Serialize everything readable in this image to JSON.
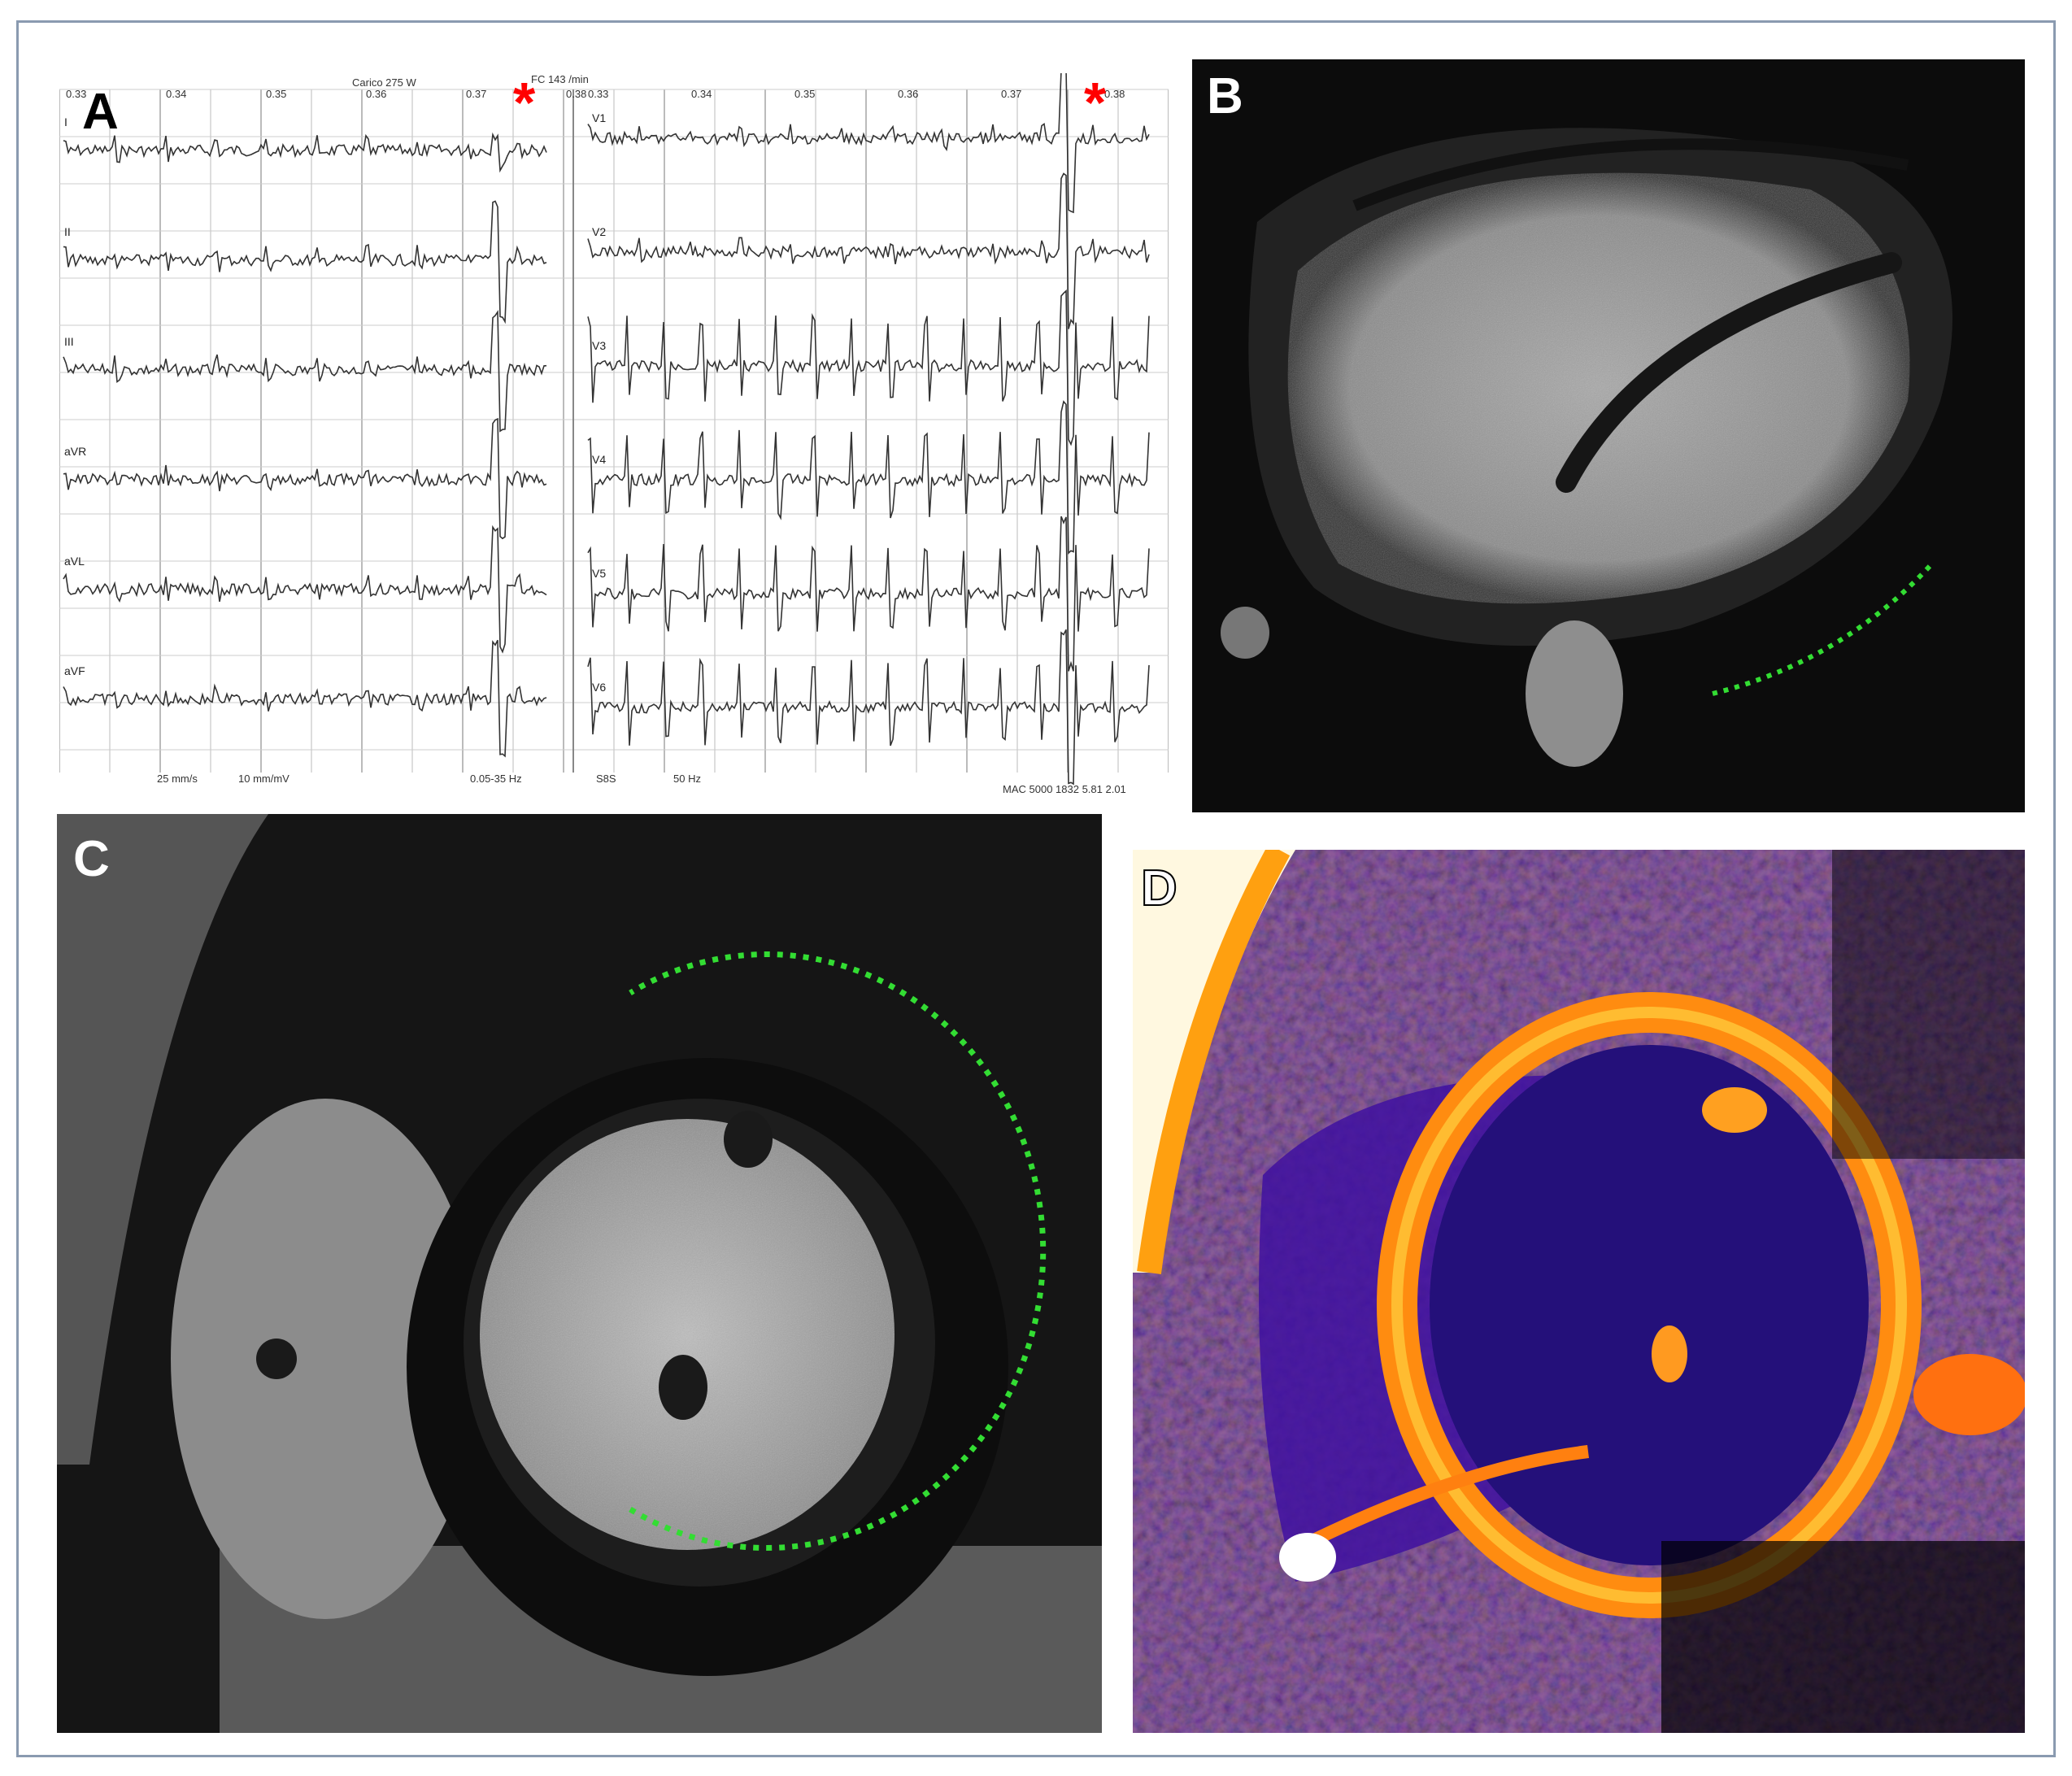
{
  "panels": {
    "a": {
      "label": "A",
      "header_left": "Carico 275 W",
      "header_right": "FC 143 /min",
      "time_marks_left": [
        "0.33",
        "0.34",
        "0.35",
        "0.36",
        "0.37",
        "0.38"
      ],
      "time_marks_right": [
        "0.33",
        "0.34",
        "0.35",
        "0.36",
        "0.37",
        "0.38"
      ],
      "leads_left": [
        "I",
        "II",
        "III",
        "aVR",
        "aVL",
        "aVF"
      ],
      "leads_right": [
        "V1",
        "V2",
        "V3",
        "V4",
        "V5",
        "V6"
      ],
      "footer": {
        "speed": "25 mm/s",
        "gain": "10 mm/mV",
        "filter": "0.05-35 Hz",
        "mode": "S8S",
        "notch": "50 Hz",
        "device": "MAC 5000 1832 5.81 2.01"
      },
      "marker_color": "#ff0000"
    },
    "b": {
      "label": "B",
      "annotation_color": "#33dd33"
    },
    "c": {
      "label": "C",
      "annotation_color": "#33dd33"
    },
    "d": {
      "label": "D"
    }
  }
}
